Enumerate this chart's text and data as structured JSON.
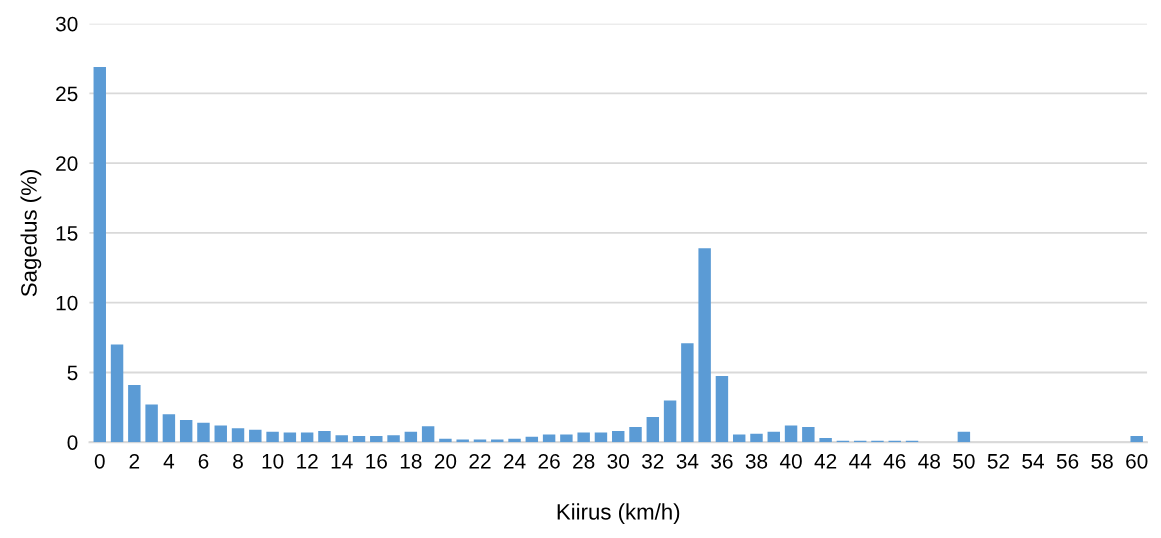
{
  "chart_data": {
    "type": "bar",
    "xlabel": "Kiirus (km/h)",
    "ylabel": "Sagedus (%)",
    "categories": [
      "0",
      null,
      "2",
      null,
      "4",
      null,
      "6",
      null,
      "8",
      null,
      "10",
      null,
      "12",
      null,
      "14",
      null,
      "16",
      null,
      "18",
      null,
      "20",
      null,
      "22",
      null,
      "24",
      null,
      "26",
      null,
      "28",
      null,
      "30",
      null,
      "32",
      null,
      "34",
      null,
      "36",
      null,
      "38",
      null,
      "40",
      null,
      "42",
      null,
      "44",
      null,
      "46",
      null,
      "48",
      null,
      "50",
      null,
      "52",
      null,
      "54",
      null,
      "56",
      null,
      "58",
      null,
      "60"
    ],
    "values": [
      26.9,
      7.0,
      4.1,
      2.7,
      2.0,
      1.6,
      1.4,
      1.2,
      1.0,
      0.9,
      0.75,
      0.7,
      0.7,
      0.8,
      0.5,
      0.45,
      0.45,
      0.5,
      0.75,
      1.15,
      0.25,
      0.2,
      0.2,
      0.2,
      0.25,
      0.4,
      0.55,
      0.55,
      0.7,
      0.7,
      0.8,
      1.1,
      1.8,
      3.0,
      7.1,
      13.9,
      4.75,
      0.55,
      0.6,
      0.75,
      1.2,
      1.1,
      0.3,
      0.1,
      0.1,
      0.1,
      0.1,
      0.1,
      0,
      0,
      0.75,
      0,
      0,
      0,
      0,
      0,
      0,
      0,
      0,
      0,
      0.45
    ],
    "color": "#5b9bd5",
    "ylim": [
      0,
      30
    ],
    "yticks": [
      0,
      5,
      10,
      15,
      20,
      25,
      30
    ],
    "grid": "y"
  }
}
